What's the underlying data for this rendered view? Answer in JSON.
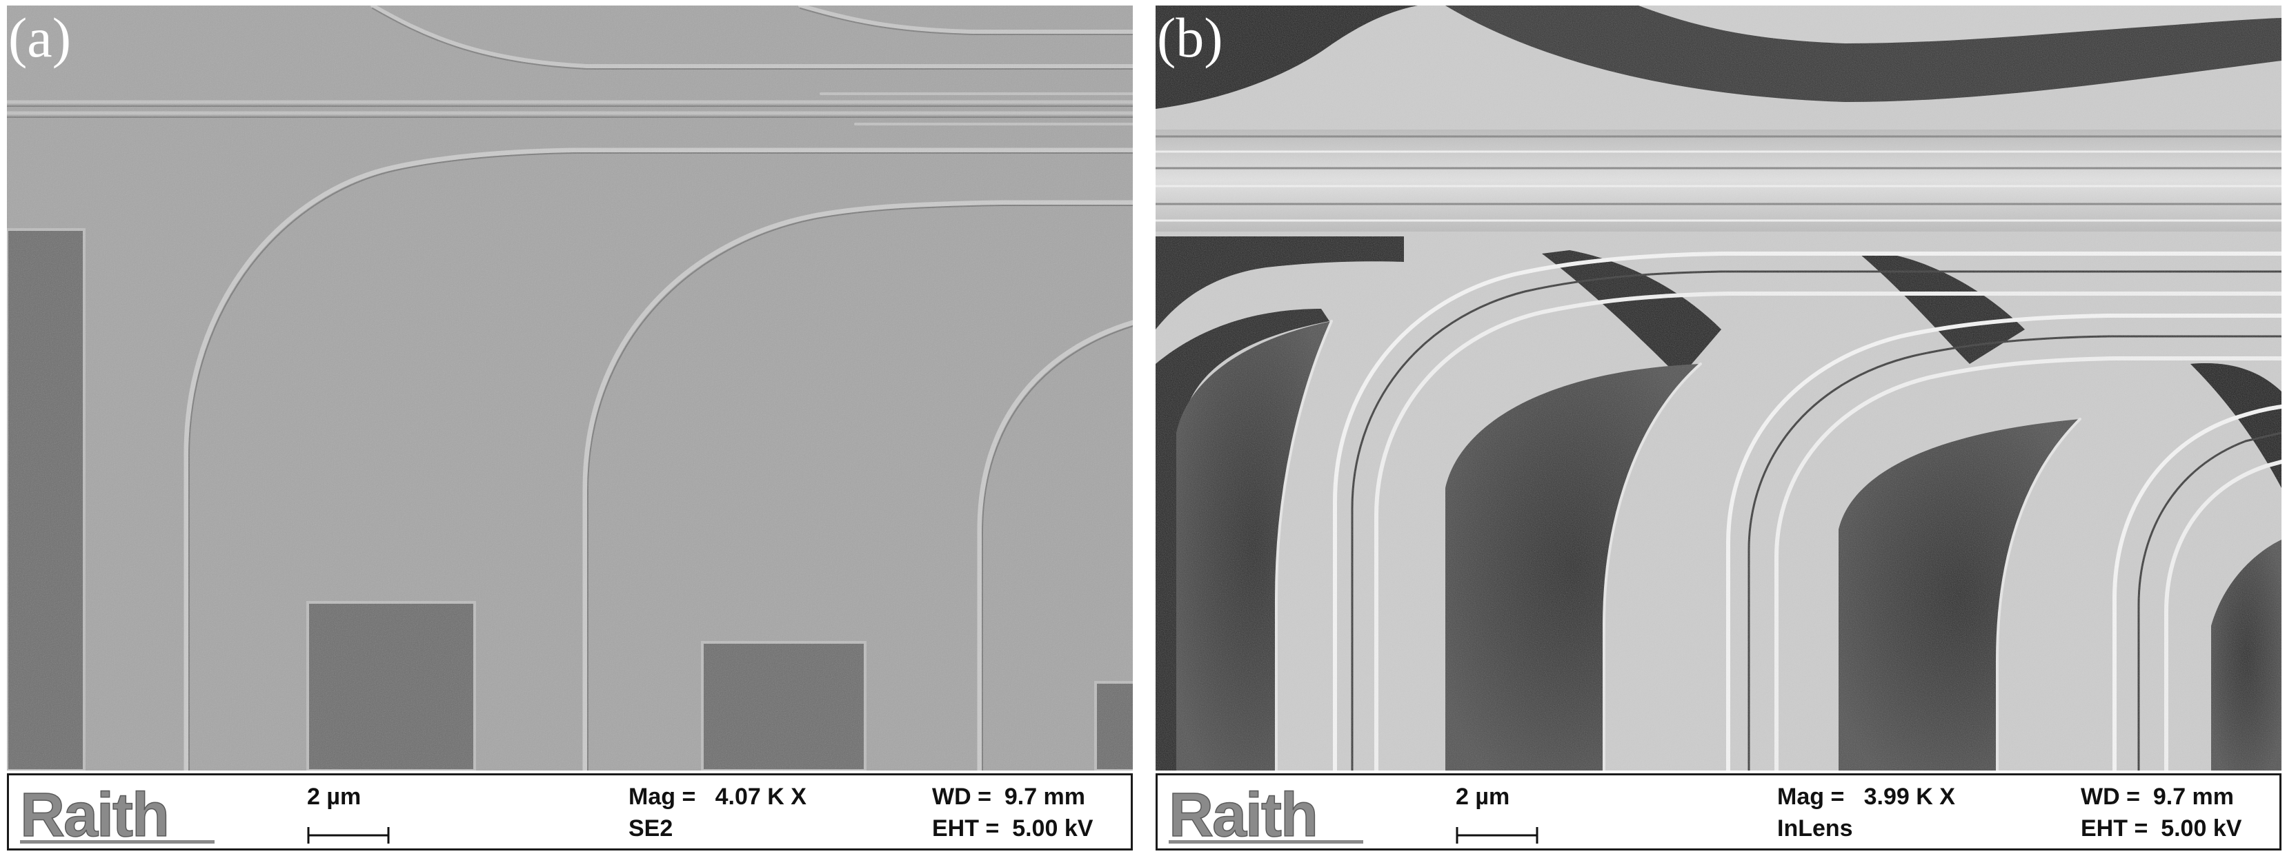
{
  "panels": [
    {
      "label": "(a)",
      "logo_text": "Raith",
      "scale_label": "2 µm",
      "mag": "Mag =   4.07 K X",
      "detector": "SE2",
      "wd": "WD =  9.7 mm",
      "eht": "EHT =  5.00 kV"
    },
    {
      "label": "(b)",
      "logo_text": "Raith",
      "scale_label": "2 µm",
      "mag": "Mag =   3.99 K X",
      "detector": "InLens",
      "wd": "WD =  9.7 mm",
      "eht": "EHT =  5.00 kV"
    }
  ],
  "colors": {
    "se2_background": "#a6a6a6",
    "se2_pad": "#6f6f6f",
    "inlens_dark": "#1a1a1a",
    "inlens_light": "#cfcfcf",
    "logo_gray": "#8a8a8a"
  }
}
